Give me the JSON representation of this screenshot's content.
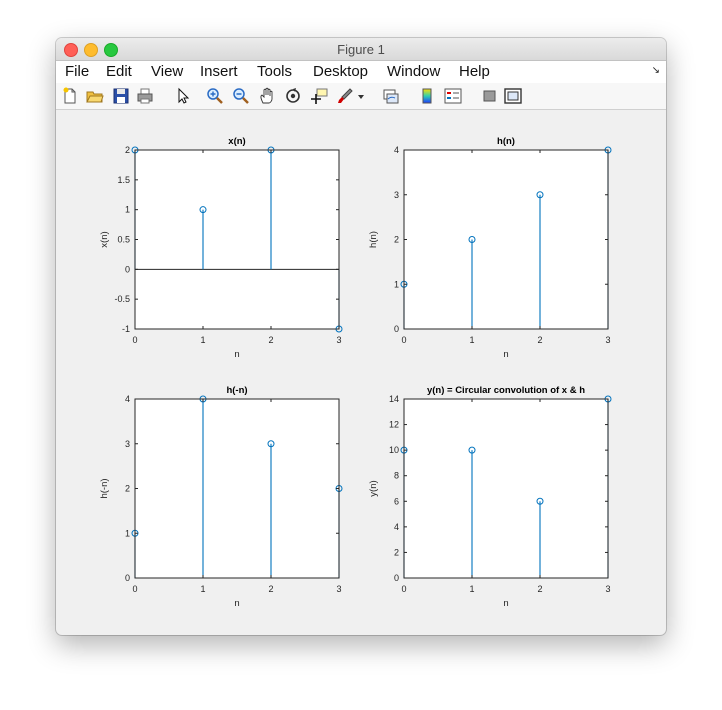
{
  "window": {
    "title": "Figure 1"
  },
  "menu": [
    "File",
    "Edit",
    "View",
    "Insert",
    "Tools",
    "Desktop",
    "Window",
    "Help"
  ],
  "toolbar_icons": [
    "new-figure-icon",
    "open-file-icon",
    "save-icon",
    "print-icon",
    "pointer-icon",
    "zoom-in-icon",
    "zoom-out-icon",
    "pan-icon",
    "rotate-icon",
    "data-cursor-icon",
    "brush-icon",
    "brush-dropdown-icon",
    "link-plot-icon",
    "colorbar-icon",
    "legend-icon",
    "hide-plot-tools-icon",
    "show-plot-tools-icon"
  ],
  "colors": {
    "stem": "#0072bd",
    "axes": "#000000",
    "plot_bg": "#ffffff",
    "figure_bg": "#f0f0f0"
  },
  "chart_data": [
    {
      "type": "stem",
      "title": "x(n)",
      "xlabel": "n",
      "ylabel": "x(n)",
      "x": [
        0,
        1,
        2,
        3
      ],
      "y": [
        2,
        1,
        2,
        -1
      ],
      "xlim": [
        0,
        3
      ],
      "ylim": [
        -1,
        2
      ],
      "xticks": [
        "0",
        "1",
        "2",
        "3"
      ],
      "yticks": [
        "-1",
        "-0.5",
        "0",
        "0.5",
        "1",
        "1.5",
        "2"
      ],
      "ytick_values": [
        -1,
        -0.5,
        0,
        0.5,
        1,
        1.5,
        2
      ],
      "baseline": 0
    },
    {
      "type": "stem",
      "title": "h(n)",
      "xlabel": "n",
      "ylabel": "h(n)",
      "x": [
        0,
        1,
        2,
        3
      ],
      "y": [
        1,
        2,
        3,
        4
      ],
      "xlim": [
        0,
        3
      ],
      "ylim": [
        0,
        4
      ],
      "xticks": [
        "0",
        "1",
        "2",
        "3"
      ],
      "yticks": [
        "0",
        "1",
        "2",
        "3",
        "4"
      ],
      "ytick_values": [
        0,
        1,
        2,
        3,
        4
      ],
      "baseline": 0
    },
    {
      "type": "stem",
      "title": "h(-n)",
      "xlabel": "n",
      "ylabel": "h(-n)",
      "x": [
        0,
        1,
        2,
        3
      ],
      "y": [
        1,
        4,
        3,
        2
      ],
      "xlim": [
        0,
        3
      ],
      "ylim": [
        0,
        4
      ],
      "xticks": [
        "0",
        "1",
        "2",
        "3"
      ],
      "yticks": [
        "0",
        "1",
        "2",
        "3",
        "4"
      ],
      "ytick_values": [
        0,
        1,
        2,
        3,
        4
      ],
      "baseline": 0
    },
    {
      "type": "stem",
      "title": "y(n) = Circular convolution of x & h",
      "xlabel": "n",
      "ylabel": "y(n)",
      "x": [
        0,
        1,
        2,
        3
      ],
      "y": [
        10,
        10,
        6,
        14
      ],
      "xlim": [
        0,
        3
      ],
      "ylim": [
        0,
        14
      ],
      "xticks": [
        "0",
        "1",
        "2",
        "3"
      ],
      "yticks": [
        "0",
        "2",
        "4",
        "6",
        "8",
        "10",
        "12",
        "14"
      ],
      "ytick_values": [
        0,
        2,
        4,
        6,
        8,
        10,
        12,
        14
      ],
      "baseline": 0
    }
  ]
}
